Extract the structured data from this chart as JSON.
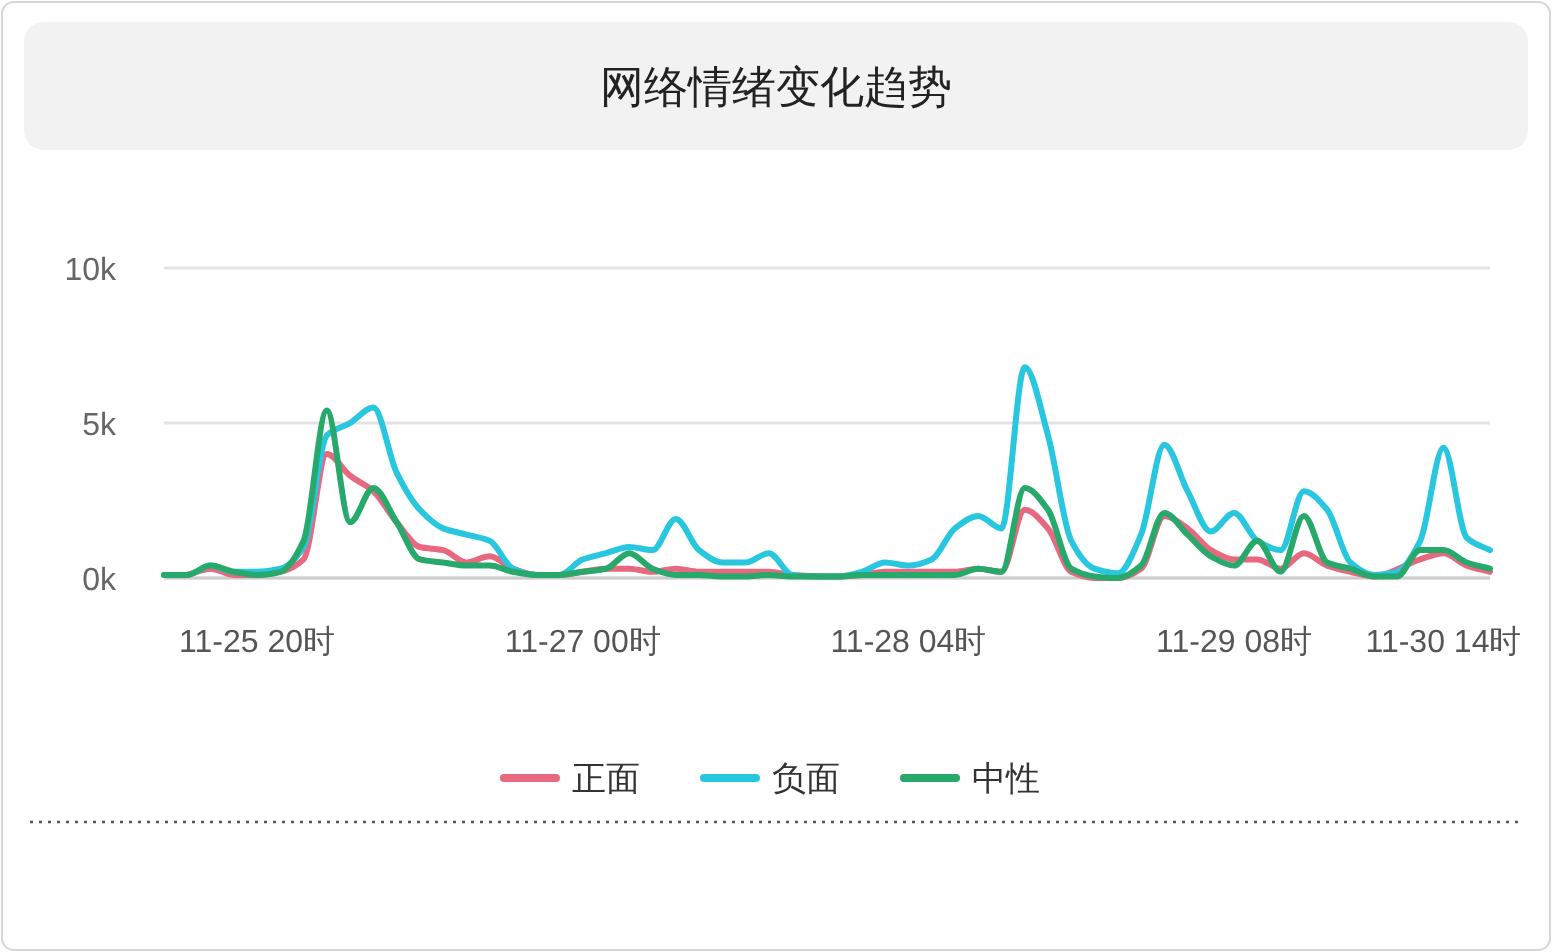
{
  "chart_data": {
    "type": "line",
    "title": "网络情绪变化趋势",
    "categories": [
      null,
      null,
      null,
      null,
      "11-25 20时",
      null,
      null,
      null,
      null,
      null,
      null,
      null,
      null,
      null,
      null,
      null,
      null,
      null,
      "11-27 00时",
      null,
      null,
      null,
      null,
      null,
      null,
      null,
      null,
      null,
      null,
      null,
      null,
      null,
      "11-28 04时",
      null,
      null,
      null,
      null,
      null,
      null,
      null,
      null,
      null,
      null,
      null,
      null,
      null,
      "11-29 08时",
      null,
      null,
      null,
      null,
      null,
      null,
      null,
      null,
      "11-30 14时",
      null,
      null
    ],
    "series": [
      {
        "name": "正面",
        "color": "#e8687f",
        "values": [
          null,
          100,
          300,
          100,
          100,
          200,
          600,
          4000,
          3300,
          2800,
          1800,
          1000,
          900,
          500,
          700,
          300,
          100,
          100,
          200,
          300,
          300,
          200,
          300,
          200,
          200,
          200,
          200,
          100,
          null,
          50,
          100,
          200,
          200,
          200,
          200,
          300,
          200,
          2200,
          1600,
          200,
          0,
          0,
          300,
          2000,
          1600,
          900,
          600,
          600,
          300,
          800,
          400,
          200,
          50,
          null,
          600,
          800,
          400,
          200
        ]
      },
      {
        "name": "负面",
        "color": "#29c6e0",
        "values": [
          100,
          100,
          400,
          200,
          200,
          300,
          1000,
          4600,
          5000,
          5500,
          3400,
          2200,
          1600,
          1400,
          1200,
          300,
          100,
          100,
          600,
          800,
          1000,
          900,
          1900,
          900,
          500,
          500,
          800,
          100,
          50,
          50,
          200,
          500,
          400,
          600,
          1600,
          2000,
          1600,
          6800,
          4600,
          1200,
          300,
          150,
          1400,
          4300,
          2800,
          1500,
          2100,
          1200,
          900,
          2800,
          2200,
          500,
          100,
          200,
          1200,
          4200,
          1300,
          900
        ]
      },
      {
        "name": "中性",
        "color": "#26a96b",
        "values": [
          100,
          100,
          400,
          200,
          100,
          200,
          1200,
          5400,
          1800,
          2900,
          1800,
          600,
          500,
          400,
          400,
          200,
          100,
          100,
          200,
          300,
          800,
          300,
          100,
          100,
          50,
          50,
          100,
          50,
          50,
          50,
          100,
          100,
          100,
          100,
          100,
          300,
          200,
          2900,
          2200,
          300,
          50,
          0,
          400,
          2100,
          1400,
          700,
          400,
          1200,
          200,
          2000,
          500,
          300,
          50,
          50,
          900,
          900,
          500,
          300
        ]
      }
    ],
    "ylim": [
      0,
      10000
    ],
    "yticks": [
      {
        "value": 0,
        "label": "0k"
      },
      {
        "value": 5000,
        "label": "5k"
      },
      {
        "value": 10000,
        "label": "10k"
      }
    ],
    "grid": "y",
    "legend": "bottom",
    "marker": "none",
    "line_style": "solid"
  }
}
